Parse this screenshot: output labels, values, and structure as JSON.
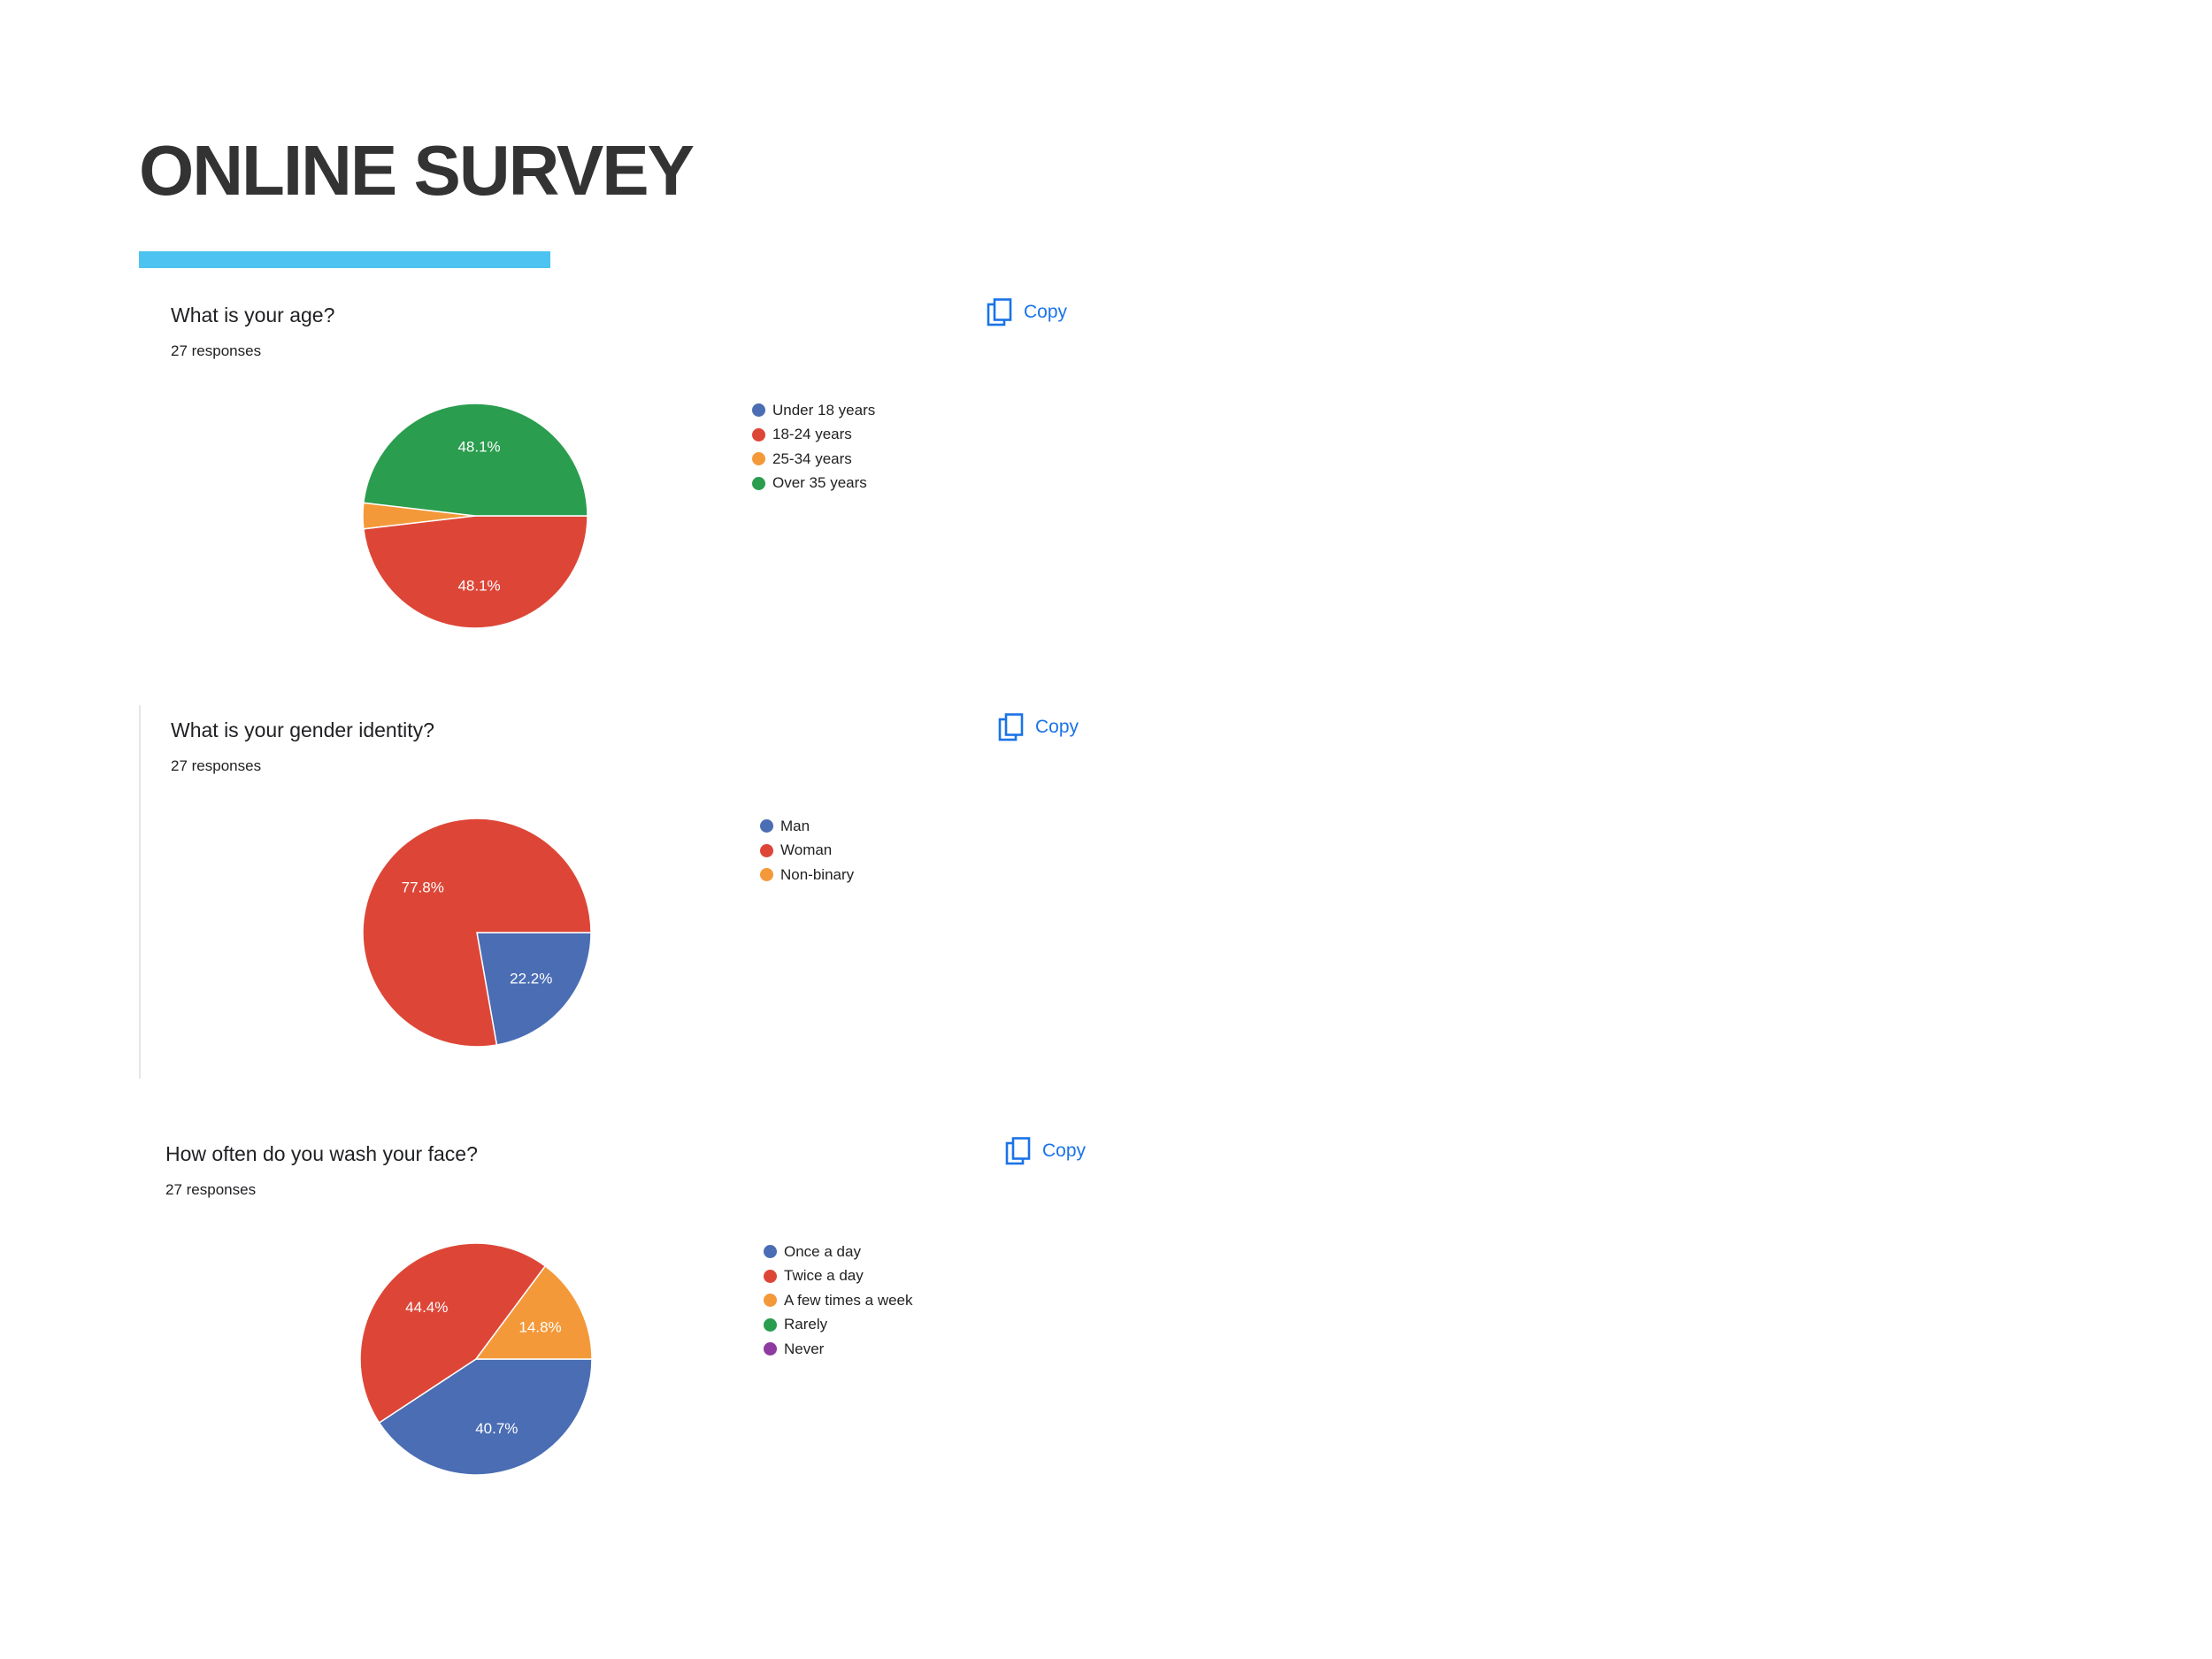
{
  "page": {
    "title": "ONLINE SURVEY"
  },
  "colors": {
    "blue": "#4a6db4",
    "red": "#dd4637",
    "orange": "#f4993a",
    "green": "#2a9d4e",
    "purple": "#8e3aa0",
    "accent": "#4cc3f0",
    "link": "#1a73e8"
  },
  "copy_label": "Copy",
  "chart_data": [
    {
      "type": "pie",
      "title": "What is your age?",
      "responses": "27 responses",
      "categories": [
        "Under 18 years",
        "18-24 years",
        "25-34 years",
        "Over 35 years"
      ],
      "values": [
        0,
        13,
        1,
        13
      ],
      "percent_labels": [
        "",
        "48.1%",
        "",
        "48.1%"
      ],
      "colors": [
        "#4a6db4",
        "#dd4637",
        "#f4993a",
        "#2a9d4e"
      ],
      "legend": "right"
    },
    {
      "type": "pie",
      "title": "What is your gender identity?",
      "responses": "27 responses",
      "categories": [
        "Man",
        "Woman",
        "Non-binary"
      ],
      "values": [
        6,
        21,
        0
      ],
      "percent_labels": [
        "22.2%",
        "77.8%",
        ""
      ],
      "colors": [
        "#4a6db4",
        "#dd4637",
        "#f4993a"
      ],
      "legend": "right"
    },
    {
      "type": "pie",
      "title": "How often do you wash your face?",
      "responses": "27 responses",
      "categories": [
        "Once a day",
        "Twice a day",
        "A few times a week",
        "Rarely",
        "Never"
      ],
      "values": [
        11,
        12,
        4,
        0,
        0
      ],
      "percent_labels": [
        "40.7%",
        "44.4%",
        "14.8%",
        "",
        ""
      ],
      "colors": [
        "#4a6db4",
        "#dd4637",
        "#f4993a",
        "#2a9d4e",
        "#8e3aa0"
      ],
      "legend": "right"
    }
  ]
}
